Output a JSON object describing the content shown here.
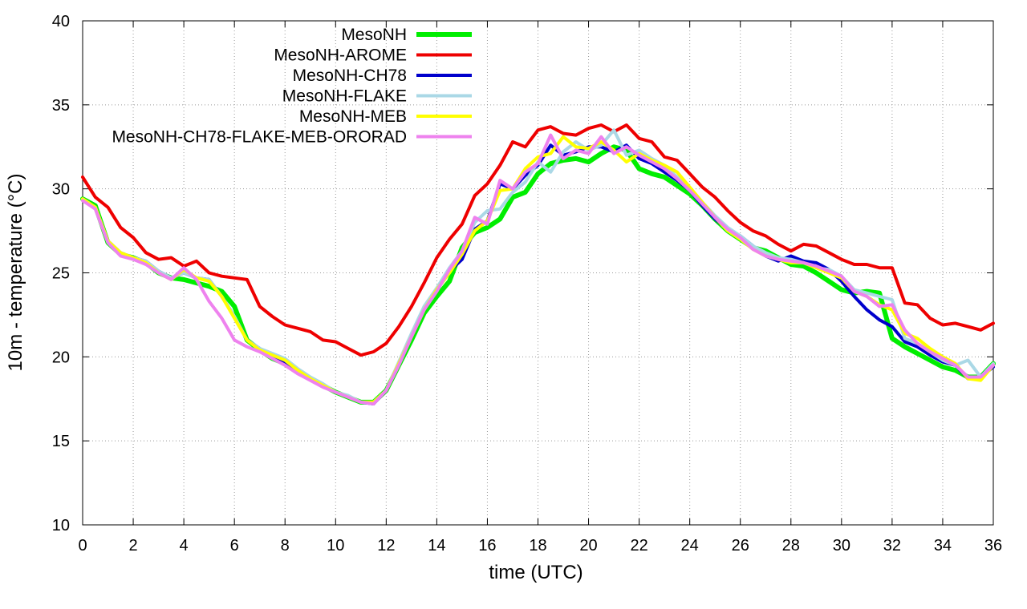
{
  "chart_data": {
    "type": "line",
    "xlabel": "time (UTC)",
    "ylabel": "10m - temperature (°C)",
    "xlim": [
      0,
      36
    ],
    "ylim": [
      10,
      40
    ],
    "xticks": [
      0,
      2,
      4,
      6,
      8,
      10,
      12,
      14,
      16,
      18,
      20,
      22,
      24,
      26,
      28,
      30,
      32,
      34,
      36
    ],
    "yticks": [
      10,
      15,
      20,
      25,
      30,
      35,
      40
    ],
    "grid": true,
    "legend_position": "top-left",
    "x": [
      0,
      0.5,
      1,
      1.5,
      2,
      2.5,
      3,
      3.5,
      4,
      4.5,
      5,
      5.5,
      6,
      6.5,
      7,
      7.5,
      8,
      8.5,
      9,
      9.5,
      10,
      10.5,
      11,
      11.5,
      12,
      12.5,
      13,
      13.5,
      14,
      14.5,
      15,
      15.5,
      16,
      16.5,
      17,
      17.5,
      18,
      18.5,
      19,
      19.5,
      20,
      20.5,
      21,
      21.5,
      22,
      22.5,
      23,
      23.5,
      24,
      24.5,
      25,
      25.5,
      26,
      26.5,
      27,
      27.5,
      28,
      28.5,
      29,
      29.5,
      30,
      30.5,
      31,
      31.5,
      32,
      32.5,
      33,
      33.5,
      34,
      34.5,
      35,
      35.5,
      36
    ],
    "series": [
      {
        "name": "MesoNH",
        "color": "#00ee00",
        "values": [
          29.4,
          29.0,
          26.8,
          26.1,
          25.9,
          25.6,
          25.0,
          24.7,
          24.6,
          24.4,
          24.2,
          23.9,
          23.0,
          21.0,
          20.4,
          19.9,
          19.6,
          19.2,
          18.7,
          18.3,
          17.9,
          17.6,
          17.3,
          17.3,
          18.0,
          19.5,
          21.0,
          22.6,
          23.6,
          24.5,
          26.5,
          27.4,
          27.7,
          28.2,
          29.5,
          29.8,
          30.9,
          31.5,
          31.7,
          31.8,
          31.6,
          32.1,
          32.5,
          32.3,
          31.2,
          30.9,
          30.7,
          30.2,
          29.7,
          29.0,
          28.2,
          27.5,
          27.0,
          26.5,
          26.3,
          25.9,
          25.5,
          25.4,
          25.0,
          24.5,
          24.0,
          23.8,
          23.9,
          23.8,
          21.1,
          20.6,
          20.2,
          19.8,
          19.4,
          19.2,
          18.8,
          18.8,
          19.6
        ]
      },
      {
        "name": "MesoNH-AROME",
        "color": "#ee0000",
        "values": [
          30.7,
          29.5,
          28.9,
          27.7,
          27.1,
          26.2,
          25.8,
          25.9,
          25.4,
          25.7,
          25.0,
          24.8,
          24.7,
          24.6,
          23.0,
          22.4,
          21.9,
          21.7,
          21.5,
          21.0,
          20.9,
          20.5,
          20.1,
          20.3,
          20.8,
          21.8,
          23.0,
          24.4,
          25.9,
          27.0,
          27.9,
          29.6,
          30.3,
          31.4,
          32.8,
          32.5,
          33.5,
          33.7,
          33.3,
          33.2,
          33.6,
          33.8,
          33.4,
          33.8,
          33.0,
          32.8,
          31.9,
          31.7,
          30.9,
          30.1,
          29.5,
          28.7,
          28.0,
          27.5,
          27.2,
          26.7,
          26.3,
          26.7,
          26.6,
          26.2,
          25.8,
          25.5,
          25.5,
          25.3,
          25.3,
          23.2,
          23.1,
          22.3,
          21.9,
          22.0,
          21.8,
          21.6,
          22.0
        ]
      },
      {
        "name": "MesoNH-CH78",
        "color": "#0000cc",
        "values": [
          29.4,
          28.9,
          26.9,
          26.2,
          25.9,
          25.7,
          25.1,
          24.7,
          25.0,
          24.7,
          24.6,
          23.6,
          22.4,
          21.0,
          20.5,
          20.0,
          19.7,
          19.2,
          18.7,
          18.3,
          17.9,
          17.6,
          17.3,
          17.2,
          18.0,
          19.6,
          21.3,
          22.9,
          24.0,
          25.1,
          25.8,
          27.6,
          28.1,
          30.3,
          30.0,
          30.8,
          31.4,
          32.6,
          32.0,
          32.2,
          32.5,
          32.5,
          32.2,
          32.6,
          31.8,
          31.5,
          31.0,
          30.5,
          29.9,
          29.0,
          28.2,
          27.6,
          27.2,
          26.6,
          26.0,
          25.7,
          26.0,
          25.7,
          25.6,
          25.2,
          24.5,
          23.6,
          22.8,
          22.2,
          21.8,
          20.9,
          20.6,
          20.1,
          19.7,
          19.5,
          18.7,
          18.8,
          19.4
        ]
      },
      {
        "name": "MesoNH-FLAKE",
        "color": "#aad8e6",
        "values": [
          29.4,
          28.9,
          26.9,
          26.2,
          25.9,
          25.7,
          25.1,
          24.7,
          25.0,
          24.7,
          24.6,
          23.6,
          22.4,
          21.0,
          20.5,
          20.2,
          19.9,
          19.3,
          18.8,
          18.4,
          17.9,
          17.7,
          17.3,
          17.3,
          18.0,
          19.7,
          21.4,
          23.0,
          24.1,
          25.3,
          26.3,
          28.0,
          28.7,
          28.8,
          29.8,
          30.4,
          31.6,
          31.0,
          32.2,
          32.8,
          32.3,
          32.6,
          33.5,
          32.0,
          32.3,
          31.8,
          31.4,
          30.7,
          30.0,
          29.2,
          28.4,
          27.7,
          27.2,
          26.6,
          26.2,
          25.9,
          25.8,
          25.6,
          25.3,
          25.2,
          24.8,
          24.0,
          23.8,
          23.6,
          23.4,
          21.1,
          20.8,
          20.3,
          19.8,
          19.5,
          19.8,
          18.8,
          19.6
        ]
      },
      {
        "name": "MesoNH-MEB",
        "color": "#ffff00",
        "values": [
          29.4,
          28.9,
          26.9,
          26.2,
          25.9,
          25.6,
          25.0,
          24.6,
          25.2,
          24.7,
          24.5,
          23.6,
          22.3,
          21.0,
          20.4,
          20.1,
          19.8,
          19.2,
          18.7,
          18.3,
          17.9,
          17.6,
          17.3,
          17.3,
          18.0,
          19.6,
          21.2,
          22.8,
          24.0,
          25.0,
          26.1,
          27.5,
          28.1,
          29.9,
          30.0,
          31.2,
          31.9,
          32.1,
          33.1,
          32.5,
          32.4,
          32.8,
          32.3,
          31.6,
          32.1,
          31.7,
          31.4,
          31.0,
          30.1,
          29.2,
          28.3,
          27.5,
          27.0,
          26.4,
          26.0,
          25.8,
          25.6,
          25.6,
          25.3,
          25.0,
          24.7,
          23.9,
          23.6,
          23.1,
          22.8,
          21.4,
          21.1,
          20.5,
          20.0,
          19.6,
          18.7,
          18.6,
          19.5
        ]
      },
      {
        "name": "MesoNH-CH78-FLAKE-MEB-ORORAD",
        "color": "#ee82ee",
        "values": [
          29.3,
          28.8,
          26.8,
          26.0,
          25.8,
          25.5,
          25.0,
          24.6,
          25.3,
          24.6,
          23.3,
          22.3,
          21.0,
          20.6,
          20.3,
          19.9,
          19.5,
          19.0,
          18.6,
          18.2,
          17.9,
          17.6,
          17.3,
          17.2,
          18.0,
          19.5,
          21.2,
          22.8,
          23.9,
          25.2,
          26.3,
          28.3,
          27.9,
          30.5,
          30.0,
          31.0,
          31.5,
          33.2,
          31.8,
          32.3,
          32.1,
          33.1,
          32.1,
          32.5,
          32.0,
          31.6,
          31.2,
          30.6,
          29.9,
          29.1,
          28.3,
          27.6,
          27.1,
          26.4,
          26.0,
          25.8,
          25.7,
          25.6,
          25.4,
          25.1,
          24.8,
          23.9,
          23.6,
          23.0,
          23.1,
          21.6,
          20.8,
          20.3,
          19.9,
          19.5,
          18.8,
          18.8,
          19.5
        ]
      }
    ]
  }
}
